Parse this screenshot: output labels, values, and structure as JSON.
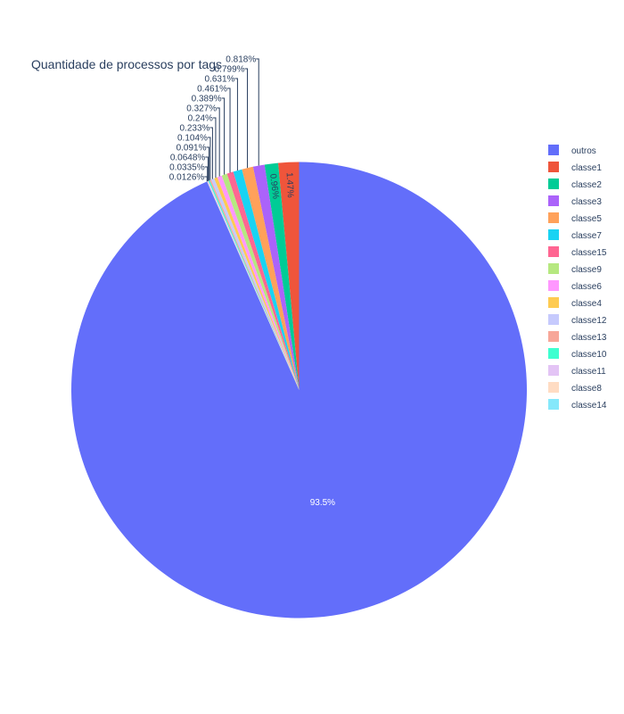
{
  "chart_data": {
    "type": "pie",
    "title": "Quantidade de processos por tags",
    "legend_position": "right",
    "slices": [
      {
        "name": "outros",
        "percent": 93.5,
        "label": "93.5%",
        "color": "#636efa"
      },
      {
        "name": "classe1",
        "percent": 1.47,
        "label": "1.47%",
        "color": "#ef553b"
      },
      {
        "name": "classe2",
        "percent": 0.96,
        "label": "0.96%",
        "color": "#00cc96"
      },
      {
        "name": "classe3",
        "percent": 0.818,
        "label": "0.818%",
        "color": "#ab63fa"
      },
      {
        "name": "classe5",
        "percent": 0.799,
        "label": "0.799%",
        "color": "#ffa15a"
      },
      {
        "name": "classe7",
        "percent": 0.631,
        "label": "0.631%",
        "color": "#19d3f3"
      },
      {
        "name": "classe15",
        "percent": 0.461,
        "label": "0.461%",
        "color": "#ff6692"
      },
      {
        "name": "classe9",
        "percent": 0.389,
        "label": "0.389%",
        "color": "#b6e880"
      },
      {
        "name": "classe6",
        "percent": 0.327,
        "label": "0.327%",
        "color": "#ff97ff"
      },
      {
        "name": "classe4",
        "percent": 0.24,
        "label": "0.24%",
        "color": "#fecb52"
      },
      {
        "name": "classe12",
        "percent": 0.233,
        "label": "0.233%",
        "color": "#c6cafd"
      },
      {
        "name": "classe13",
        "percent": 0.104,
        "label": "0.104%",
        "color": "#f7a799"
      },
      {
        "name": "classe10",
        "percent": 0.091,
        "label": "0.091%",
        "color": "#3effd0"
      },
      {
        "name": "classe11",
        "percent": 0.0648,
        "label": "0.0648%",
        "color": "#e3c4f5"
      },
      {
        "name": "classe8",
        "percent": 0.0335,
        "label": "0.0335%",
        "color": "#ffdcc3"
      },
      {
        "name": "classe14",
        "percent": 0.0126,
        "label": "0.0126%",
        "color": "#85e8fb"
      }
    ]
  }
}
